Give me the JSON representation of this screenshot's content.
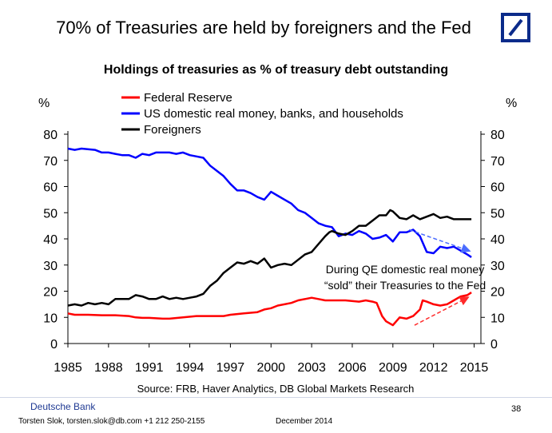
{
  "header": {
    "headline": "70% of Treasuries are held by foreigners and the Fed",
    "logo": "deutsche-bank-logo"
  },
  "chart_data": {
    "type": "line",
    "title": "Holdings of treasuries as % of treasury debt outstanding",
    "ylabel_left": "%",
    "ylabel_right": "%",
    "ylim": [
      0,
      80
    ],
    "yticks": [
      0,
      10,
      20,
      30,
      40,
      50,
      60,
      70,
      80
    ],
    "xlim": [
      1985,
      2015.5
    ],
    "xticks": [
      1985,
      1988,
      1991,
      1994,
      1997,
      2000,
      2003,
      2006,
      2009,
      2012,
      2015
    ],
    "xtick_labels": [
      "1985",
      "1988",
      "1991",
      "1994",
      "1997",
      "2000",
      "2003",
      "2006",
      "2009",
      "2012",
      "2015"
    ],
    "legend": "top-left",
    "series": [
      {
        "name": "Federal Reserve",
        "color": "#ff0000",
        "x": [
          1985.0,
          1985.5,
          1986.5,
          1987.5,
          1988.5,
          1989.5,
          1990.0,
          1990.5,
          1991.0,
          1992.0,
          1992.5,
          1993.5,
          1994.5,
          1995.5,
          1996.5,
          1997.0,
          1998.0,
          1999.0,
          1999.5,
          2000.0,
          2000.5,
          2001.5,
          2002.0,
          2003.0,
          2003.5,
          2004.0,
          2004.5,
          2005.5,
          2006.5,
          2007.0,
          2007.5,
          2007.8,
          2008.0,
          2008.2,
          2008.5,
          2009.0,
          2009.5,
          2010.0,
          2010.5,
          2011.0,
          2011.2,
          2011.5,
          2012.0,
          2012.5,
          2013.0,
          2013.5,
          2014.0,
          2014.5,
          2014.8
        ],
        "values": [
          11.5,
          11.0,
          11.0,
          10.8,
          10.8,
          10.5,
          10.0,
          9.8,
          9.8,
          9.5,
          9.5,
          10.0,
          10.5,
          10.5,
          10.5,
          11.0,
          11.5,
          12.0,
          13.0,
          13.5,
          14.5,
          15.5,
          16.5,
          17.5,
          17.0,
          16.5,
          16.5,
          16.5,
          16.0,
          16.5,
          16.0,
          15.5,
          13.0,
          10.5,
          8.5,
          7.0,
          10.0,
          9.5,
          10.5,
          13.0,
          16.5,
          16.0,
          15.0,
          14.5,
          15.0,
          16.5,
          18.0,
          18.5,
          19.5
        ]
      },
      {
        "name": "US domestic real money, banks, and households",
        "color": "#0000ff",
        "x": [
          1985.0,
          1985.5,
          1986.0,
          1987.0,
          1987.5,
          1988.0,
          1988.5,
          1989.0,
          1989.5,
          1990.0,
          1990.5,
          1991.0,
          1991.5,
          1992.0,
          1992.5,
          1993.0,
          1993.5,
          1994.0,
          1994.5,
          1995.0,
          1995.5,
          1996.0,
          1996.5,
          1997.0,
          1997.5,
          1998.0,
          1998.5,
          1999.0,
          1999.5,
          2000.0,
          2000.5,
          2001.0,
          2001.5,
          2002.0,
          2002.5,
          2003.0,
          2003.5,
          2004.0,
          2004.5,
          2005.0,
          2005.5,
          2006.0,
          2006.5,
          2007.0,
          2007.5,
          2008.0,
          2008.5,
          2009.0,
          2009.5,
          2010.0,
          2010.5,
          2011.0,
          2011.5,
          2012.0,
          2012.5,
          2013.0,
          2013.5,
          2014.0,
          2014.5,
          2014.8
        ],
        "values": [
          74.5,
          74.0,
          74.5,
          74.0,
          73.0,
          73.0,
          72.5,
          72.0,
          72.0,
          71.0,
          72.5,
          72.0,
          73.0,
          73.0,
          73.0,
          72.5,
          73.0,
          72.0,
          71.5,
          71.0,
          68.0,
          66.0,
          64.0,
          61.0,
          58.5,
          58.5,
          57.5,
          56.0,
          55.0,
          58.0,
          56.5,
          55.0,
          53.5,
          51.0,
          50.0,
          48.0,
          46.0,
          45.0,
          44.5,
          41.0,
          42.0,
          41.5,
          43.0,
          42.0,
          40.0,
          40.5,
          41.5,
          39.0,
          42.5,
          42.5,
          43.5,
          41.0,
          35.0,
          34.5,
          37.0,
          36.5,
          37.0,
          35.5,
          34.0,
          33.0
        ]
      },
      {
        "name": "Foreigners",
        "color": "#000000",
        "x": [
          1985.0,
          1985.5,
          1986.0,
          1986.5,
          1987.0,
          1987.5,
          1988.0,
          1988.5,
          1989.0,
          1989.5,
          1990.0,
          1990.5,
          1991.0,
          1991.5,
          1992.0,
          1992.5,
          1993.0,
          1993.5,
          1994.0,
          1994.5,
          1995.0,
          1995.5,
          1996.0,
          1996.5,
          1997.0,
          1997.5,
          1998.0,
          1998.5,
          1999.0,
          1999.5,
          2000.0,
          2000.5,
          2001.0,
          2001.5,
          2002.0,
          2002.5,
          2003.0,
          2003.5,
          2004.0,
          2004.3,
          2004.5,
          2005.0,
          2005.5,
          2006.0,
          2006.5,
          2007.0,
          2007.5,
          2008.0,
          2008.5,
          2008.8,
          2009.0,
          2009.5,
          2010.0,
          2010.5,
          2011.0,
          2011.5,
          2012.0,
          2012.5,
          2013.0,
          2013.5,
          2014.0,
          2014.5,
          2014.8
        ],
        "values": [
          14.5,
          15.0,
          14.5,
          15.5,
          15.0,
          15.5,
          15.0,
          17.0,
          17.0,
          17.0,
          18.5,
          18.0,
          17.0,
          17.0,
          18.0,
          17.0,
          17.5,
          17.0,
          17.5,
          18.0,
          19.0,
          22.0,
          24.0,
          27.0,
          29.0,
          31.0,
          30.5,
          31.5,
          30.5,
          32.5,
          29.0,
          30.0,
          30.5,
          30.0,
          32.0,
          34.0,
          35.0,
          38.0,
          41.0,
          42.5,
          43.0,
          42.0,
          41.5,
          43.0,
          45.0,
          45.0,
          47.0,
          49.0,
          49.0,
          51.0,
          50.5,
          48.0,
          47.5,
          49.0,
          47.5,
          48.5,
          49.5,
          48.0,
          48.5,
          47.5,
          47.5,
          47.5,
          47.5
        ]
      }
    ],
    "annotations": [
      {
        "text_lines": [
          "During QE domestic real money",
          "“sold” their Treasuries to the Fed"
        ]
      }
    ]
  },
  "source_note": "Source: FRB, Haver Analytics,  DB Global Markets Research",
  "footer": {
    "bank": "Deutsche Bank",
    "author": "Torsten Slok, torsten.slok@db.com +1 212 250-2155",
    "date": "December  2014",
    "page_number": "38"
  }
}
